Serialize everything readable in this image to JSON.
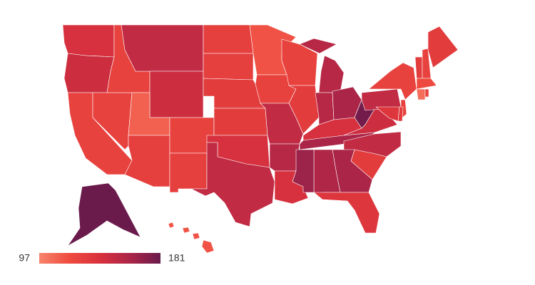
{
  "chart_data": {
    "type": "choropleth",
    "values": [
      140,
      145,
      125,
      125,
      125,
      150,
      145,
      110,
      128,
      125,
      128,
      128,
      128,
      130,
      130,
      140,
      150,
      115,
      125,
      150,
      155,
      140,
      125,
      130,
      155,
      155,
      160,
      140,
      160,
      178,
      145,
      150,
      130,
      160,
      158,
      165,
      135,
      150,
      125,
      125,
      135,
      130,
      130,
      125,
      130,
      120,
      105,
      125,
      181,
      115
    ],
    "scale": {
      "min": 97,
      "max": 181,
      "colors": [
        "#f7846c",
        "#ef4b3e",
        "#d9313d",
        "#ab2548",
        "#6a1b4c"
      ]
    }
  }
}
